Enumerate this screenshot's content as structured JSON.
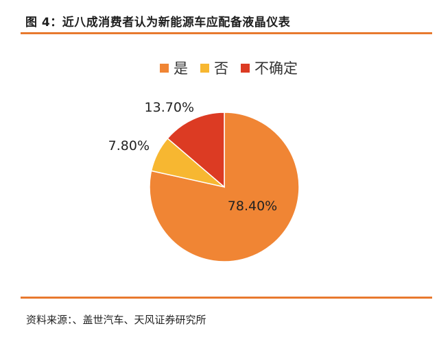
{
  "figure": {
    "title": "图 4：近八成消费者认为新能源车应配备液晶仪表",
    "source": "资料来源：、盖世汽车、天风证券研究所",
    "accent_color": "#e8792e"
  },
  "chart_data": {
    "type": "pie",
    "categories": [
      "是",
      "否",
      "不确定"
    ],
    "values": [
      78.4,
      7.8,
      13.7
    ],
    "labels": [
      "78.40%",
      "7.80%",
      "13.70%"
    ],
    "colors": [
      "#f08534",
      "#f7b731",
      "#dc3b23"
    ],
    "legend_position": "top"
  }
}
